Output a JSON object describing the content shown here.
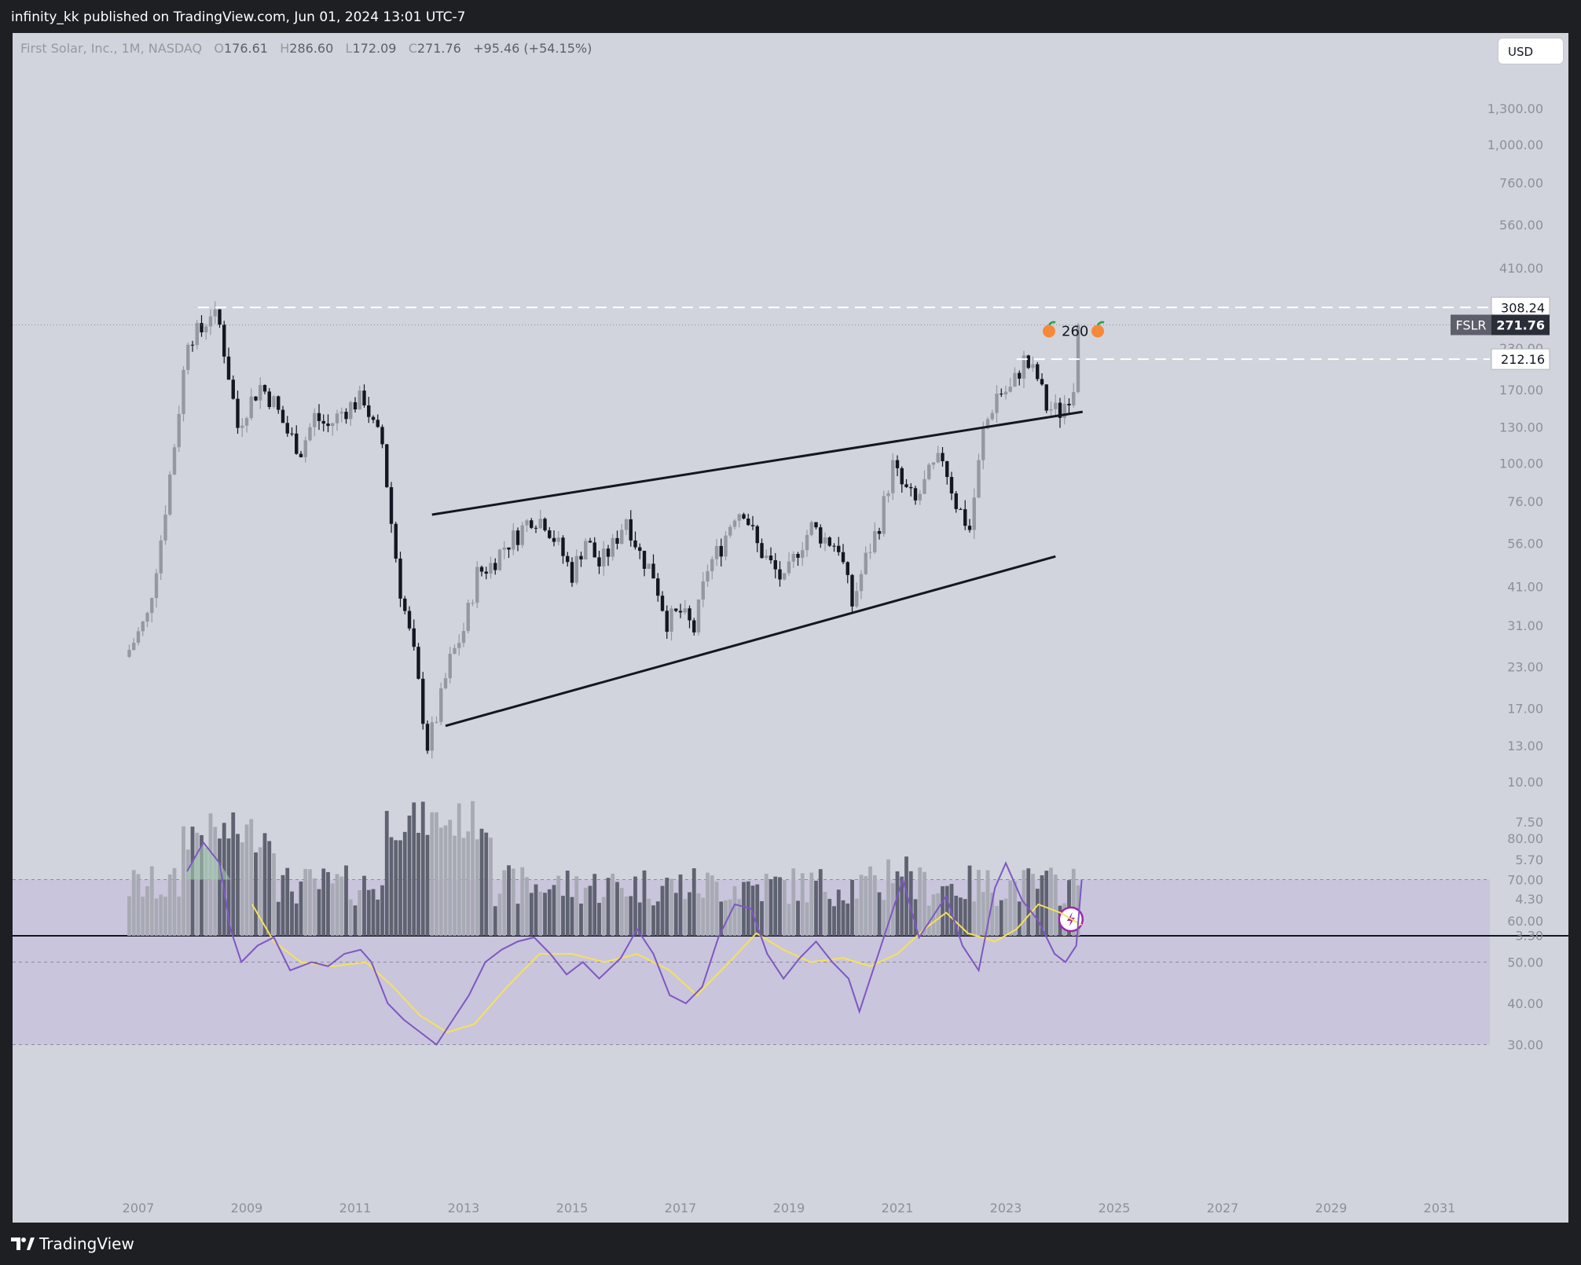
{
  "header": {
    "publisher": "infinity_kk published on TradingView.com, Jun 01, 2024 13:01 UTC-7"
  },
  "legend": {
    "symbol": "First Solar, Inc., 1M, NASDAQ",
    "o_label": "O",
    "o_value": "176.61",
    "h_label": "H",
    "h_value": "286.60",
    "l_label": "L",
    "l_value": "172.09",
    "c_label": "C",
    "c_value": "271.76",
    "change": "+95.46 (+54.15%)"
  },
  "currency_button": "USD",
  "footer": {
    "brand": "TradingView"
  },
  "colors": {
    "background": "#d1d4dc",
    "candle_up": "#9598a1",
    "candle_down": "#131722",
    "rsi_line": "#7e57c2",
    "rsi_ma": "#f7e15a",
    "rsi_band": "#c9c5dc"
  },
  "chart_data": {
    "type": "candlestick",
    "scale": "log",
    "price_axis": {
      "ticks": [
        "1,300.00",
        "1,000.00",
        "760.00",
        "560.00",
        "410.00",
        "230.00",
        "170.00",
        "130.00",
        "100.00",
        "76.00",
        "56.00",
        "41.00",
        "31.00",
        "23.00",
        "17.00",
        "13.00",
        "10.00",
        "7.50",
        "5.70",
        "4.30",
        "3.30"
      ]
    },
    "time_axis": {
      "ticks": [
        "2007",
        "2009",
        "2011",
        "2013",
        "2015",
        "2017",
        "2019",
        "2021",
        "2023",
        "2025",
        "2027",
        "2029",
        "2031"
      ]
    },
    "price_labels": [
      {
        "value": "308.24",
        "kind": "level"
      },
      {
        "value": "212.16",
        "kind": "level"
      },
      {
        "symbol": "FSLR",
        "value": "271.76",
        "kind": "last"
      }
    ],
    "levels": [
      308.24,
      212.16
    ],
    "last_price": 271.76,
    "annotation": {
      "text": "260",
      "icon": "peach-icon"
    },
    "trendlines": [
      {
        "name": "upper",
        "from": {
          "date": "2012-06",
          "price": 69
        },
        "to": {
          "date": "2024-06",
          "price": 145
        }
      },
      {
        "name": "lower",
        "from": {
          "date": "2012-09",
          "price": 15
        },
        "to": {
          "date": "2023-12",
          "price": 51
        }
      }
    ],
    "monthly_close": [
      [
        2006,
        11,
        26
      ],
      [
        2007,
        3,
        33
      ],
      [
        2007,
        6,
        58
      ],
      [
        2007,
        9,
        115
      ],
      [
        2007,
        12,
        250
      ],
      [
        2008,
        3,
        260
      ],
      [
        2008,
        5,
        300
      ],
      [
        2008,
        7,
        270
      ],
      [
        2008,
        9,
        190
      ],
      [
        2008,
        11,
        130
      ],
      [
        2009,
        1,
        150
      ],
      [
        2009,
        4,
        175
      ],
      [
        2009,
        7,
        155
      ],
      [
        2009,
        10,
        125
      ],
      [
        2010,
        1,
        110
      ],
      [
        2010,
        4,
        140
      ],
      [
        2010,
        7,
        130
      ],
      [
        2010,
        10,
        145
      ],
      [
        2011,
        1,
        155
      ],
      [
        2011,
        3,
        160
      ],
      [
        2011,
        5,
        130
      ],
      [
        2011,
        7,
        115
      ],
      [
        2011,
        9,
        65
      ],
      [
        2011,
        11,
        40
      ],
      [
        2012,
        2,
        25
      ],
      [
        2012,
        5,
        13
      ],
      [
        2012,
        7,
        16
      ],
      [
        2012,
        10,
        24
      ],
      [
        2013,
        1,
        30
      ],
      [
        2013,
        4,
        45
      ],
      [
        2013,
        7,
        48
      ],
      [
        2013,
        10,
        55
      ],
      [
        2014,
        1,
        60
      ],
      [
        2014,
        4,
        68
      ],
      [
        2014,
        7,
        66
      ],
      [
        2014,
        10,
        55
      ],
      [
        2015,
        1,
        45
      ],
      [
        2015,
        4,
        58
      ],
      [
        2015,
        7,
        48
      ],
      [
        2015,
        10,
        55
      ],
      [
        2016,
        1,
        68
      ],
      [
        2016,
        4,
        52
      ],
      [
        2016,
        7,
        45
      ],
      [
        2016,
        10,
        32
      ],
      [
        2017,
        1,
        34
      ],
      [
        2017,
        4,
        30
      ],
      [
        2017,
        7,
        47
      ],
      [
        2017,
        10,
        55
      ],
      [
        2018,
        1,
        70
      ],
      [
        2018,
        3,
        72
      ],
      [
        2018,
        6,
        55
      ],
      [
        2018,
        9,
        48
      ],
      [
        2018,
        12,
        42
      ],
      [
        2019,
        3,
        54
      ],
      [
        2019,
        6,
        63
      ],
      [
        2019,
        9,
        58
      ],
      [
        2019,
        12,
        55
      ],
      [
        2020,
        3,
        36
      ],
      [
        2020,
        6,
        50
      ],
      [
        2020,
        9,
        65
      ],
      [
        2020,
        12,
        98
      ],
      [
        2021,
        2,
        85
      ],
      [
        2021,
        5,
        75
      ],
      [
        2021,
        8,
        92
      ],
      [
        2021,
        11,
        105
      ],
      [
        2022,
        2,
        75
      ],
      [
        2022,
        5,
        62
      ],
      [
        2022,
        8,
        125
      ],
      [
        2022,
        11,
        165
      ],
      [
        2023,
        2,
        170
      ],
      [
        2023,
        5,
        210
      ],
      [
        2023,
        8,
        185
      ],
      [
        2023,
        10,
        150
      ],
      [
        2024,
        1,
        145
      ],
      [
        2024,
        3,
        165
      ],
      [
        2024,
        4,
        176
      ],
      [
        2024,
        5,
        272
      ]
    ],
    "rsi": {
      "levels": [
        70,
        50,
        30
      ],
      "ticks": [
        "80.00",
        "70.00",
        "60.00",
        "50.00",
        "40.00",
        "30.00"
      ],
      "values": [
        [
          2007.9,
          72
        ],
        [
          2008.2,
          79
        ],
        [
          2008.5,
          74
        ],
        [
          2008.7,
          58
        ],
        [
          2008.9,
          50
        ],
        [
          2009.2,
          54
        ],
        [
          2009.5,
          56
        ],
        [
          2009.8,
          48
        ],
        [
          2010.2,
          50
        ],
        [
          2010.5,
          49
        ],
        [
          2010.8,
          52
        ],
        [
          2011.1,
          53
        ],
        [
          2011.3,
          50
        ],
        [
          2011.6,
          40
        ],
        [
          2011.9,
          36
        ],
        [
          2012.2,
          33
        ],
        [
          2012.5,
          30
        ],
        [
          2012.8,
          36
        ],
        [
          2013.1,
          42
        ],
        [
          2013.4,
          50
        ],
        [
          2013.7,
          53
        ],
        [
          2014.0,
          55
        ],
        [
          2014.3,
          56
        ],
        [
          2014.6,
          52
        ],
        [
          2014.9,
          47
        ],
        [
          2015.2,
          50
        ],
        [
          2015.5,
          46
        ],
        [
          2015.9,
          51
        ],
        [
          2016.2,
          58
        ],
        [
          2016.5,
          52
        ],
        [
          2016.8,
          42
        ],
        [
          2017.1,
          40
        ],
        [
          2017.4,
          44
        ],
        [
          2017.7,
          56
        ],
        [
          2018.0,
          64
        ],
        [
          2018.3,
          63
        ],
        [
          2018.6,
          52
        ],
        [
          2018.9,
          46
        ],
        [
          2019.2,
          51
        ],
        [
          2019.5,
          55
        ],
        [
          2019.8,
          50
        ],
        [
          2020.1,
          46
        ],
        [
          2020.3,
          38
        ],
        [
          2020.6,
          50
        ],
        [
          2020.9,
          62
        ],
        [
          2021.1,
          70
        ],
        [
          2021.4,
          56
        ],
        [
          2021.7,
          62
        ],
        [
          2021.9,
          66
        ],
        [
          2022.2,
          54
        ],
        [
          2022.5,
          48
        ],
        [
          2022.8,
          68
        ],
        [
          2023.0,
          74
        ],
        [
          2023.3,
          65
        ],
        [
          2023.6,
          60
        ],
        [
          2023.9,
          52
        ],
        [
          2024.1,
          50
        ],
        [
          2024.3,
          54
        ],
        [
          2024.4,
          70
        ]
      ],
      "ma": [
        [
          2009.1,
          64
        ],
        [
          2009.5,
          55
        ],
        [
          2010.0,
          50
        ],
        [
          2010.6,
          49
        ],
        [
          2011.2,
          50
        ],
        [
          2011.7,
          44
        ],
        [
          2012.2,
          37
        ],
        [
          2012.7,
          33
        ],
        [
          2013.2,
          35
        ],
        [
          2013.8,
          44
        ],
        [
          2014.4,
          52
        ],
        [
          2015.0,
          52
        ],
        [
          2015.6,
          50
        ],
        [
          2016.2,
          52
        ],
        [
          2016.8,
          48
        ],
        [
          2017.3,
          42
        ],
        [
          2017.9,
          50
        ],
        [
          2018.4,
          57
        ],
        [
          2018.9,
          53
        ],
        [
          2019.4,
          50
        ],
        [
          2020.0,
          51
        ],
        [
          2020.5,
          49
        ],
        [
          2021.0,
          52
        ],
        [
          2021.5,
          58
        ],
        [
          2021.9,
          62
        ],
        [
          2022.3,
          57
        ],
        [
          2022.8,
          55
        ],
        [
          2023.2,
          58
        ],
        [
          2023.6,
          64
        ],
        [
          2024.0,
          62
        ],
        [
          2024.4,
          59
        ]
      ]
    }
  }
}
